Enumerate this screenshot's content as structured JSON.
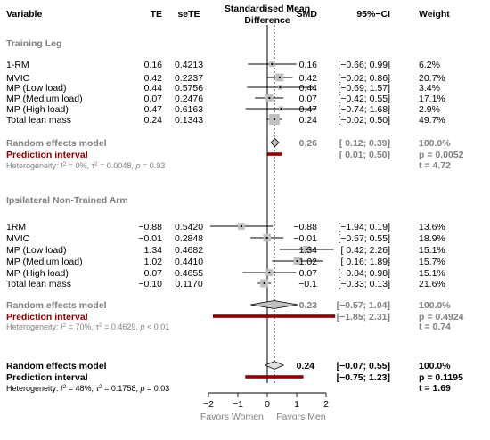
{
  "chart_data": {
    "type": "forest",
    "columns": {
      "variable": "Variable",
      "te": "TE",
      "sete": "seTE",
      "effect_line1": "Standardised Mean",
      "effect_line2": "Difference",
      "smd": "SMD",
      "ci": "95%−CI",
      "weight": "Weight"
    },
    "x_axis": {
      "ticks": [
        -2,
        -1,
        0,
        1,
        2
      ],
      "tick_labels": [
        "−2",
        "−1",
        "0",
        "1",
        "2"
      ],
      "xlim": [
        -2,
        2
      ],
      "left_label": "Favors Women",
      "right_label": "Favors Men",
      "reference_line": 0,
      "overall_line": 0.24
    },
    "groups": [
      {
        "name": "Training Leg",
        "studies": [
          {
            "label": "1-RM",
            "te": "0.16",
            "sete": "0.4213",
            "smd": 0.16,
            "lower": -0.66,
            "upper": 0.99,
            "smd_text": "0.16",
            "ci_text": "[−0.66; 0.99]",
            "weight_text": "6.2%",
            "weight": 6.2
          },
          {
            "label": "MVIC",
            "te": "0.42",
            "sete": "0.2237",
            "smd": 0.42,
            "lower": -0.02,
            "upper": 0.86,
            "smd_text": "0.42",
            "ci_text": "[−0.02; 0.86]",
            "weight_text": "20.7%",
            "weight": 20.7
          },
          {
            "label": "MP (Low load)",
            "te": "0.44",
            "sete": "0.5756",
            "smd": 0.44,
            "lower": -0.69,
            "upper": 1.57,
            "smd_text": "0.44",
            "ci_text": "[−0.69; 1.57]",
            "weight_text": "3.4%",
            "weight": 3.4
          },
          {
            "label": "MP (Medium load)",
            "te": "0.07",
            "sete": "0.2476",
            "smd": 0.07,
            "lower": -0.42,
            "upper": 0.55,
            "smd_text": "0.07",
            "ci_text": "[−0.42; 0.55]",
            "weight_text": "17.1%",
            "weight": 17.1
          },
          {
            "label": "MP (High load)",
            "te": "0.47",
            "sete": "0.6163",
            "smd": 0.47,
            "lower": -0.74,
            "upper": 1.68,
            "smd_text": "0.47",
            "ci_text": "[−0.74; 1.68]",
            "weight_text": "2.9%",
            "weight": 2.9
          },
          {
            "label": "Total lean mass",
            "te": "0.24",
            "sete": "0.1343",
            "smd": 0.24,
            "lower": -0.02,
            "upper": 0.5,
            "smd_text": "0.24",
            "ci_text": "[−0.02; 0.50]",
            "weight_text": "49.7%",
            "weight": 49.7
          }
        ],
        "random_effects": {
          "label": "Random effects model",
          "smd": 0.26,
          "lower": 0.12,
          "upper": 0.39,
          "smd_text": "0.26",
          "ci_text": "[ 0.12;  0.39]",
          "weight_text": "100.0%"
        },
        "prediction": {
          "label": "Prediction interval",
          "lower": 0.01,
          "upper": 0.5,
          "ci_text": "[ 0.01; 0.50]",
          "p_text": "p = 0.0052"
        },
        "t_text": "t = 4.72",
        "heterogeneity": {
          "prefix": "Heterogeneity: ",
          "i2": "I",
          "i2_value": " = 0%, ",
          "tau2": "τ",
          "tau2_value": " = 0.0048, ",
          "p": "p",
          "p_value": " = 0.93"
        }
      },
      {
        "name": "Ipsilateral Non-Trained  Arm",
        "studies": [
          {
            "label": "1RM",
            "te": "−0.88",
            "sete": "0.5420",
            "smd": -0.88,
            "lower": -1.94,
            "upper": 0.19,
            "smd_text": "−0.88",
            "ci_text": "[−1.94; 0.19]",
            "weight_text": "13.6%",
            "weight": 13.6
          },
          {
            "label": "MVIC",
            "te": "−0.01",
            "sete": "0.2848",
            "smd": -0.01,
            "lower": -0.57,
            "upper": 0.55,
            "smd_text": "−0.01",
            "ci_text": "[−0.57; 0.55]",
            "weight_text": "18.9%",
            "weight": 18.9
          },
          {
            "label": "MP (Low load)",
            "te": "1.34",
            "sete": "0.4682",
            "smd": 1.34,
            "lower": 0.42,
            "upper": 2.26,
            "smd_text": "1.34",
            "ci_text": "[ 0.42; 2.26]",
            "weight_text": "15.1%",
            "weight": 15.1
          },
          {
            "label": "MP (Medium load)",
            "te": "1.02",
            "sete": "0.4410",
            "smd": 1.02,
            "lower": 0.16,
            "upper": 1.89,
            "smd_text": "1.02",
            "ci_text": "[ 0.16; 1.89]",
            "weight_text": "15.7%",
            "weight": 15.7
          },
          {
            "label": "MP (High load)",
            "te": "0.07",
            "sete": "0.4655",
            "smd": 0.07,
            "lower": -0.84,
            "upper": 0.98,
            "smd_text": "0.07",
            "ci_text": "[−0.84; 0.98]",
            "weight_text": "15.1%",
            "weight": 15.1
          },
          {
            "label": "Total lean mass",
            "te": "−0.10",
            "sete": "0.1170",
            "smd": -0.1,
            "lower": -0.33,
            "upper": 0.13,
            "smd_text": "−0.1",
            "ci_text": "[−0.33; 0.13]",
            "weight_text": "21.6%",
            "weight": 21.6
          }
        ],
        "random_effects": {
          "label": "Random effects model",
          "smd": 0.23,
          "lower": -0.57,
          "upper": 1.04,
          "smd_text": "0.23",
          "ci_text": "[−0.57; 1.04]",
          "weight_text": "100.0%"
        },
        "prediction": {
          "label": "Prediction interval",
          "lower": -1.85,
          "upper": 2.31,
          "ci_text": "[−1.85; 2.31]",
          "p_text": "p = 0.4924"
        },
        "t_text": "t = 0.74",
        "heterogeneity": {
          "prefix": "Heterogeneity: ",
          "i2": "I",
          "i2_value": " = 70%, ",
          "tau2": "τ",
          "tau2_value": " = 0.4629, ",
          "p": "p",
          "p_value": " < 0.01"
        }
      }
    ],
    "overall": {
      "random_effects": {
        "label": "Random effects model",
        "smd": 0.24,
        "lower": -0.07,
        "upper": 0.55,
        "smd_text": "0.24",
        "ci_text": "[−0.07; 0.55]",
        "weight_text": "100.0%"
      },
      "prediction": {
        "label": "Prediction interval",
        "lower": -0.75,
        "upper": 1.23,
        "ci_text": "[−0.75; 1.23]",
        "p_text": "p = 0.1195"
      },
      "t_text": "t = 1.69",
      "heterogeneity": {
        "prefix": "Heterogeneity: ",
        "i2": "I",
        "i2_value": " = 48%, ",
        "tau2": "τ",
        "tau2_value": " = 0.1758, ",
        "p": "p",
        "p_value": " = 0.03"
      }
    },
    "colors": {
      "text": "#000000",
      "subgroup_text": "#808080",
      "square": "#c0c0c0",
      "prediction_bar": "#8b0000",
      "diamond_fill": "#c0c0c0",
      "overall_diamond_fill": "#e0e0e0"
    }
  }
}
